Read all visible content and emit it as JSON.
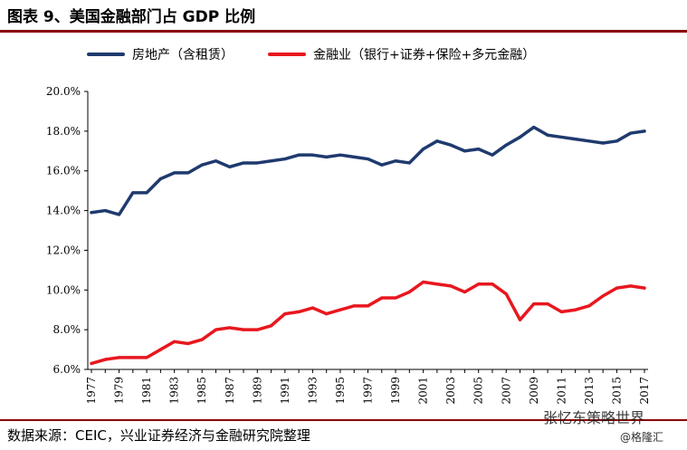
{
  "title": "图表 9、美国金融部门占 GDP 比例",
  "source": "数据来源：CEIC，兴业证券经济与金融研究院整理",
  "watermark": "张忆东策略世界",
  "watermark_sub": "@格隆汇",
  "chart_data": {
    "type": "line",
    "title": "图表 9、美国金融部门占 GDP 比例",
    "xlabel": "",
    "ylabel": "",
    "x": [
      1977,
      1978,
      1979,
      1980,
      1981,
      1982,
      1983,
      1984,
      1985,
      1986,
      1987,
      1988,
      1989,
      1990,
      1991,
      1992,
      1993,
      1994,
      1995,
      1996,
      1997,
      1998,
      1999,
      2000,
      2001,
      2002,
      2003,
      2004,
      2005,
      2006,
      2007,
      2008,
      2009,
      2010,
      2011,
      2012,
      2013,
      2014,
      2015,
      2016,
      2017
    ],
    "x_tick_labels": [
      "1977",
      "1979",
      "1981",
      "1983",
      "1985",
      "1987",
      "1989",
      "1991",
      "1993",
      "1995",
      "1997",
      "1999",
      "2001",
      "2003",
      "2005",
      "2007",
      "2009",
      "2011",
      "2013",
      "2015",
      "2017"
    ],
    "ylim": [
      6.0,
      20.0
    ],
    "y_tick_labels": [
      "6.0%",
      "8.0%",
      "10.0%",
      "12.0%",
      "14.0%",
      "16.0%",
      "18.0%",
      "20.0%"
    ],
    "y_ticks": [
      6,
      8,
      10,
      12,
      14,
      16,
      18,
      20
    ],
    "grid": false,
    "legend_position": "top",
    "series": [
      {
        "name": "房地产（含租赁）",
        "color": "#1f3a6e",
        "values": [
          13.9,
          14.0,
          13.8,
          14.9,
          14.9,
          15.6,
          15.9,
          15.9,
          16.3,
          16.5,
          16.2,
          16.4,
          16.4,
          16.5,
          16.6,
          16.8,
          16.8,
          16.7,
          16.8,
          16.7,
          16.6,
          16.3,
          16.5,
          16.4,
          17.1,
          17.5,
          17.3,
          17.0,
          17.1,
          16.8,
          17.3,
          17.7,
          18.2,
          17.8,
          17.7,
          17.6,
          17.5,
          17.4,
          17.5,
          17.9,
          18.0
        ]
      },
      {
        "name": "金融业（银行+证券+保险+多元金融）",
        "color": "#e8171f",
        "values": [
          6.3,
          6.5,
          6.6,
          6.6,
          6.6,
          7.0,
          7.4,
          7.3,
          7.5,
          8.0,
          8.1,
          8.0,
          8.0,
          8.2,
          8.8,
          8.9,
          9.1,
          8.8,
          9.0,
          9.2,
          9.2,
          9.6,
          9.6,
          9.9,
          10.4,
          10.3,
          10.2,
          9.9,
          10.3,
          10.3,
          9.8,
          8.5,
          9.3,
          9.3,
          8.9,
          9.0,
          9.2,
          9.7,
          10.1,
          10.2,
          10.1
        ]
      }
    ]
  }
}
